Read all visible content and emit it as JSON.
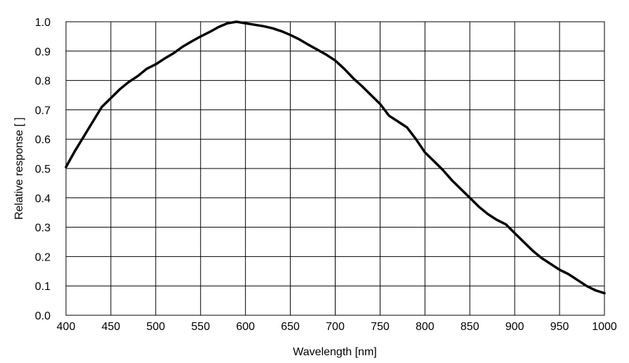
{
  "chart_data": {
    "type": "line",
    "title": "",
    "xlabel": "Wavelength [nm]",
    "ylabel": "Relative response [ ]",
    "xlim": [
      400,
      1000
    ],
    "ylim": [
      0.0,
      1.0
    ],
    "grid": true,
    "legend": "none",
    "x_ticks": [
      "400",
      "450",
      "500",
      "550",
      "600",
      "650",
      "700",
      "750",
      "800",
      "850",
      "900",
      "950",
      "1000"
    ],
    "y_ticks": [
      "0.0",
      "0.1",
      "0.2",
      "0.3",
      "0.4",
      "0.5",
      "0.6",
      "0.7",
      "0.8",
      "0.9",
      "1.0"
    ],
    "series": [
      {
        "color": "#000000",
        "x": [
          400,
          410,
          420,
          430,
          440,
          450,
          460,
          470,
          480,
          490,
          500,
          510,
          520,
          530,
          540,
          550,
          560,
          570,
          580,
          590,
          600,
          610,
          620,
          630,
          640,
          650,
          660,
          670,
          680,
          690,
          700,
          710,
          720,
          730,
          740,
          750,
          760,
          770,
          780,
          790,
          800,
          810,
          820,
          830,
          840,
          850,
          860,
          870,
          880,
          890,
          900,
          910,
          920,
          930,
          940,
          950,
          960,
          970,
          980,
          990,
          1000
        ],
        "y": [
          0.505,
          0.56,
          0.61,
          0.66,
          0.71,
          0.74,
          0.77,
          0.795,
          0.815,
          0.84,
          0.855,
          0.875,
          0.893,
          0.915,
          0.933,
          0.95,
          0.965,
          0.982,
          0.995,
          1.0,
          0.995,
          0.99,
          0.985,
          0.978,
          0.968,
          0.955,
          0.94,
          0.922,
          0.905,
          0.888,
          0.868,
          0.84,
          0.808,
          0.78,
          0.75,
          0.72,
          0.68,
          0.66,
          0.64,
          0.6,
          0.555,
          0.525,
          0.495,
          0.46,
          0.43,
          0.4,
          0.37,
          0.345,
          0.325,
          0.31,
          0.28,
          0.25,
          0.22,
          0.195,
          0.175,
          0.155,
          0.14,
          0.12,
          0.1,
          0.085,
          0.075
        ]
      }
    ]
  }
}
